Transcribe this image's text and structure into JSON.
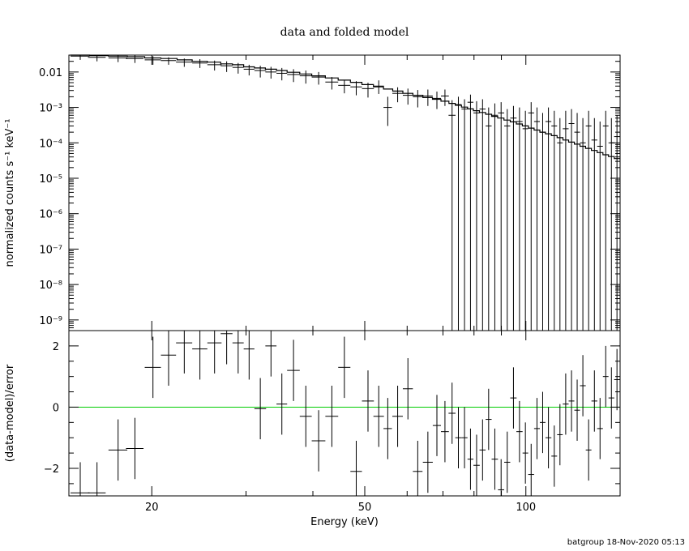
{
  "chart_data": {
    "type": "scatter",
    "title": "data and folded model",
    "xlabel": "Energy (keV)",
    "footer": "batgroup 18-Nov-2020 05:13",
    "x_scale": "log",
    "xlim": [
      14,
      150
    ],
    "x_ticks": [
      {
        "value": 20,
        "label": "20"
      },
      {
        "value": 50,
        "label": "50"
      },
      {
        "value": 100,
        "label": "100"
      }
    ],
    "top_panel": {
      "ylabel": "normalized counts s⁻¹ keV⁻¹",
      "y_scale": "log",
      "ylim": [
        5e-10,
        0.03
      ],
      "y_ticks": [
        {
          "value": 0.01,
          "label": "0.01"
        },
        {
          "value": 0.001,
          "label": "10⁻³"
        },
        {
          "value": 0.0001,
          "label": "10⁻⁴"
        },
        {
          "value": 1e-05,
          "label": "10⁻⁵"
        },
        {
          "value": 1e-06,
          "label": "10⁻⁶"
        },
        {
          "value": 1e-07,
          "label": "10⁻⁷"
        },
        {
          "value": 1e-08,
          "label": "10⁻⁸"
        },
        {
          "value": 1e-09,
          "label": "10⁻⁹"
        }
      ],
      "series": [
        {
          "type": "errorbar",
          "x": [
            14.7,
            15.8,
            17.3,
            18.6,
            20.1,
            21.5,
            23.0,
            24.6,
            26.2,
            27.6,
            29.0,
            30.4,
            31.9,
            33.4,
            35.0,
            36.8,
            38.8,
            41.0,
            43.4,
            45.8,
            48.2,
            50.7,
            53.1,
            55.2,
            57.6,
            60.2,
            62.8,
            65.6,
            68.2,
            70.6,
            72.8,
            74.8,
            76.8,
            78.8,
            80.9,
            83.0,
            85.2,
            87.5,
            89.9,
            92.3,
            94.8,
            97.3,
            99.8,
            102.3,
            104.9,
            107.5,
            110.2,
            113.0,
            115.8,
            118.7,
            121.7,
            124.7,
            127.8,
            131.0,
            134.3,
            137.6,
            141.0,
            144.5,
            148.0
          ],
          "xerr": [
            0.6,
            0.6,
            0.7,
            0.7,
            0.7,
            0.7,
            0.8,
            0.8,
            0.8,
            0.7,
            0.7,
            0.7,
            0.8,
            0.8,
            0.8,
            1.0,
            1.0,
            1.2,
            1.2,
            1.2,
            1.2,
            1.3,
            1.2,
            1.0,
            1.3,
            1.3,
            1.3,
            1.4,
            1.2,
            1.2,
            1.1,
            1.0,
            1.0,
            1.0,
            1.1,
            1.1,
            1.1,
            1.2,
            1.2,
            1.2,
            1.3,
            1.3,
            1.2,
            1.3,
            1.3,
            1.3,
            1.4,
            1.4,
            1.4,
            1.5,
            1.5,
            1.5,
            1.6,
            1.6,
            1.7,
            1.7,
            1.7,
            1.8,
            1.8
          ],
          "y": [
            0.028,
            0.026,
            0.025,
            0.024,
            0.022,
            0.021,
            0.019,
            0.018,
            0.016,
            0.015,
            0.0135,
            0.012,
            0.011,
            0.01,
            0.0092,
            0.0085,
            0.0078,
            0.0072,
            0.0052,
            0.0042,
            0.0038,
            0.0034,
            0.004,
            0.001,
            0.0025,
            0.0022,
            0.002,
            0.0021,
            0.0018,
            0.0021,
            0.0006,
            0.0012,
            0.0009,
            0.0014,
            0.0007,
            0.0009,
            0.0003,
            0.0006,
            0.0007,
            0.0003,
            0.0005,
            0.0004,
            0.00025,
            0.0007,
            0.0004,
            0.0002,
            0.0004,
            0.0003,
            0.0001,
            0.00025,
            0.00035,
            0.0002,
            0.0001,
            0.0003,
            0.00012,
            8e-05,
            0.0003,
            0.0001,
            0.00015
          ],
          "y_hi": [
            0.034,
            0.032,
            0.031,
            0.03,
            0.028,
            0.026,
            0.024,
            0.023,
            0.021,
            0.02,
            0.018,
            0.016,
            0.015,
            0.014,
            0.013,
            0.012,
            0.011,
            0.01,
            0.0072,
            0.006,
            0.0055,
            0.005,
            0.0058,
            0.002,
            0.0037,
            0.0034,
            0.0031,
            0.0032,
            0.0028,
            0.0032,
            0.0016,
            0.002,
            0.0017,
            0.0023,
            0.0015,
            0.0017,
            0.001,
            0.0013,
            0.0014,
            0.0009,
            0.0011,
            0.001,
            0.0008,
            0.0014,
            0.001,
            0.0007,
            0.001,
            0.0008,
            0.0005,
            0.0008,
            0.0009,
            0.0007,
            0.0005,
            0.0008,
            0.0005,
            0.0004,
            0.0008,
            0.0005,
            0.0006
          ],
          "y_lo": [
            0.022,
            0.02,
            0.019,
            0.018,
            0.016,
            0.016,
            0.014,
            0.013,
            0.011,
            0.01,
            0.009,
            0.008,
            0.007,
            0.0065,
            0.0058,
            0.0052,
            0.0047,
            0.0044,
            0.0032,
            0.0025,
            0.0022,
            0.0019,
            0.0024,
            0.0003,
            0.0014,
            0.0012,
            0.001,
            0.0011,
            0.0009,
            0.0011,
            "floor",
            "floor",
            "floor",
            "floor",
            "floor",
            "floor",
            "floor",
            "floor",
            "floor",
            "floor",
            "floor",
            "floor",
            "floor",
            "floor",
            "floor",
            "floor",
            "floor",
            "floor",
            "floor",
            "floor",
            "floor",
            "floor",
            "floor",
            "floor",
            "floor",
            "floor",
            "floor",
            "floor",
            "floor"
          ],
          "color": "#000000"
        },
        {
          "type": "step-model",
          "x": [
            14.1,
            15.3,
            16.6,
            18.0,
            19.4,
            20.8,
            22.3,
            23.8,
            25.4,
            26.9,
            28.3,
            29.7,
            31.1,
            32.6,
            34.2,
            35.8,
            37.8,
            39.8,
            42.2,
            44.6,
            47.0,
            49.4,
            51.9,
            54.2,
            56.4,
            58.9,
            61.5,
            64.2,
            66.9,
            69.4,
            71.8,
            73.8,
            75.8,
            77.8,
            79.8,
            81.9,
            84.1,
            86.3,
            88.6,
            91.0,
            93.5,
            96.0,
            98.5,
            101.1,
            103.6,
            106.2,
            108.8,
            111.6,
            114.4,
            117.3,
            120.2,
            123.2,
            126.2,
            129.3,
            132.6,
            135.9,
            139.3,
            142.7,
            146.3,
            150.0
          ],
          "y": [
            0.03,
            0.029,
            0.028,
            0.027,
            0.025,
            0.024,
            0.022,
            0.02,
            0.019,
            0.017,
            0.016,
            0.014,
            0.013,
            0.012,
            0.011,
            0.0098,
            0.0088,
            0.0078,
            0.0068,
            0.0059,
            0.0051,
            0.0044,
            0.0038,
            0.0033,
            0.0029,
            0.0025,
            0.0022,
            0.0019,
            0.0017,
            0.0015,
            0.0013,
            0.00115,
            0.00102,
            0.00091,
            0.00081,
            0.00072,
            0.00064,
            0.00056,
            0.0005,
            0.00044,
            0.00039,
            0.00034,
            0.0003,
            0.00026,
            0.00023,
            0.0002,
            0.00018,
            0.00016,
            0.00014,
            0.00012,
            0.000105,
            9.2e-05,
            8e-05,
            7e-05,
            6.1e-05,
            5.3e-05,
            4.6e-05,
            4.1e-05,
            3.6e-05
          ],
          "color": "#000000"
        }
      ]
    },
    "bottom_panel": {
      "ylabel": "(data-model)/error",
      "y_scale": "linear",
      "ylim": [
        -2.9,
        2.5
      ],
      "y_ticks": [
        {
          "value": 2,
          "label": "2"
        },
        {
          "value": 0,
          "label": "0"
        },
        {
          "value": -2,
          "label": "−2"
        }
      ],
      "reference_line": {
        "y": 0,
        "color": "#00cc00"
      },
      "series": [
        {
          "type": "errorbar",
          "x": [
            14.7,
            15.8,
            17.3,
            18.6,
            20.1,
            21.5,
            23.0,
            24.6,
            26.2,
            27.6,
            29.0,
            30.4,
            31.9,
            33.4,
            35.0,
            36.8,
            38.8,
            41.0,
            43.4,
            45.8,
            48.2,
            50.7,
            53.1,
            55.2,
            57.6,
            60.2,
            62.8,
            65.6,
            68.2,
            70.6,
            72.8,
            74.8,
            76.8,
            78.8,
            80.9,
            83.0,
            85.2,
            87.5,
            89.9,
            92.3,
            94.8,
            97.3,
            99.8,
            102.3,
            104.9,
            107.5,
            110.2,
            113.0,
            115.8,
            118.7,
            121.7,
            124.7,
            127.8,
            131.0,
            134.3,
            137.6,
            141.0,
            144.5,
            148.0
          ],
          "xerr": [
            0.6,
            0.6,
            0.7,
            0.7,
            0.7,
            0.7,
            0.8,
            0.8,
            0.8,
            0.7,
            0.7,
            0.7,
            0.8,
            0.8,
            0.8,
            1.0,
            1.0,
            1.2,
            1.2,
            1.2,
            1.2,
            1.3,
            1.2,
            1.0,
            1.3,
            1.3,
            1.3,
            1.4,
            1.2,
            1.2,
            1.1,
            1.0,
            1.0,
            1.0,
            1.1,
            1.1,
            1.1,
            1.2,
            1.2,
            1.2,
            1.3,
            1.3,
            1.2,
            1.3,
            1.3,
            1.3,
            1.4,
            1.4,
            1.4,
            1.5,
            1.5,
            1.5,
            1.6,
            1.6,
            1.7,
            1.7,
            1.7,
            1.8,
            1.8
          ],
          "y": [
            -2.8,
            -2.8,
            -1.4,
            -1.35,
            1.3,
            1.7,
            2.1,
            1.9,
            2.1,
            2.4,
            2.1,
            1.9,
            -0.05,
            2.0,
            0.1,
            1.2,
            -0.3,
            -1.1,
            -0.3,
            1.3,
            -2.1,
            0.2,
            -0.3,
            -0.7,
            -0.3,
            0.6,
            -2.1,
            -1.8,
            -0.6,
            -0.8,
            -0.2,
            -1.0,
            -1.0,
            -1.7,
            -1.9,
            -1.4,
            -0.4,
            -1.7,
            -2.7,
            -1.8,
            0.3,
            -0.8,
            -1.5,
            -2.2,
            -0.7,
            -0.5,
            -1.0,
            -1.6,
            -0.9,
            0.1,
            0.2,
            -0.1,
            0.7,
            -1.4,
            0.2,
            -0.7,
            1.0,
            0.3,
            0.9
          ],
          "err": [
            1.0,
            1.0,
            1.0,
            1.0,
            1.0,
            1.0,
            1.0,
            1.0,
            1.0,
            1.0,
            1.0,
            1.0,
            1.0,
            1.0,
            1.0,
            1.0,
            1.0,
            1.0,
            1.0,
            1.0,
            1.0,
            1.0,
            1.0,
            1.0,
            1.0,
            1.0,
            1.0,
            1.0,
            1.0,
            1.0,
            1.0,
            1.0,
            1.0,
            1.0,
            1.0,
            1.0,
            1.0,
            1.0,
            1.0,
            1.0,
            1.0,
            1.0,
            1.0,
            1.0,
            1.0,
            1.0,
            1.0,
            1.0,
            1.0,
            1.0,
            1.0,
            1.0,
            1.0,
            1.0,
            1.0,
            1.0,
            1.0,
            1.0,
            1.0
          ],
          "color": "#000000"
        }
      ]
    }
  }
}
